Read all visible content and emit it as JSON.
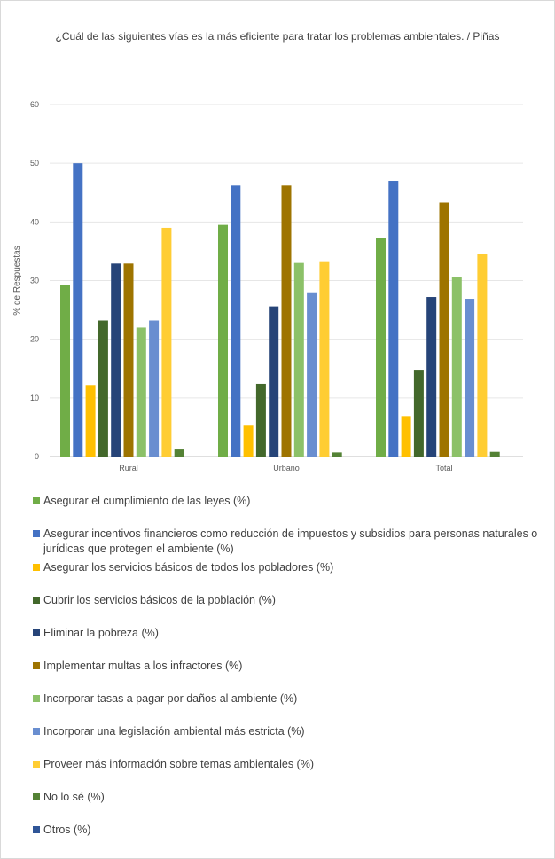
{
  "chart_data": {
    "type": "bar",
    "title": "¿Cuál de las siguientes vías es la más eficiente para tratar los problemas ambientales. / Piñas",
    "ylabel": "% de Respuestas",
    "xlabel": "",
    "ylim": [
      0,
      60
    ],
    "yticks": [
      "0",
      "10",
      "20",
      "30",
      "40",
      "50",
      "60"
    ],
    "grid": true,
    "legend_position": "bottom",
    "categories": [
      "Rural",
      "Urbano",
      "Total"
    ],
    "series": [
      {
        "name": "Asegurar el cumplimiento de las leyes (%)",
        "color": "#70ad47",
        "values": [
          29.3,
          39.5,
          37.3
        ]
      },
      {
        "name": "Asegurar incentivos financieros como reducción de impuestos y subsidios para personas naturales o jurídicas que protegen el ambiente (%)",
        "color": "#4472c4",
        "values": [
          50.0,
          46.2,
          47.0
        ]
      },
      {
        "name": "Asegurar los servicios básicos de todos los pobladores (%)",
        "color": "#ffc000",
        "values": [
          12.2,
          5.4,
          6.9
        ]
      },
      {
        "name": "Cubrir los servicios básicos de la población (%)",
        "color": "#43682b",
        "values": [
          23.2,
          12.4,
          14.8
        ]
      },
      {
        "name": "Eliminar la pobreza (%)",
        "color": "#264478",
        "values": [
          32.9,
          25.6,
          27.2
        ]
      },
      {
        "name": "Implementar multas a los infractores (%)",
        "color": "#9e7400",
        "values": [
          32.9,
          46.2,
          43.3
        ]
      },
      {
        "name": "Incorporar tasas a pagar por daños al ambiente (%)",
        "color": "#8cc168",
        "values": [
          22.0,
          33.0,
          30.6
        ]
      },
      {
        "name": "Incorporar una legislación ambiental más estricta (%)",
        "color": "#698ed0",
        "values": [
          23.2,
          28.0,
          26.9
        ]
      },
      {
        "name": "Proveer más información sobre temas ambientales (%)",
        "color": "#ffcd33",
        "values": [
          39.0,
          33.3,
          34.5
        ]
      },
      {
        "name": "No lo sé (%)",
        "color": "#548235",
        "values": [
          1.2,
          0.7,
          0.8
        ]
      },
      {
        "name": "Otros (%)",
        "color": "#2f5597",
        "values": [
          0,
          0,
          0
        ]
      }
    ]
  }
}
